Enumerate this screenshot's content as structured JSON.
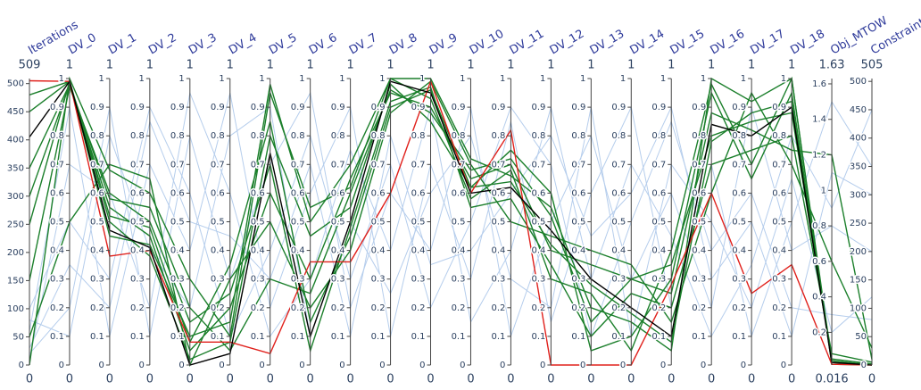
{
  "chart_data": {
    "type": "parcoords",
    "dimensions": [
      {
        "label": "Iterations",
        "range": [
          0,
          509
        ],
        "ticks": [
          0,
          50,
          100,
          150,
          200,
          250,
          300,
          350,
          400,
          450,
          500
        ]
      },
      {
        "label": "DV_0",
        "range": [
          0,
          1
        ],
        "ticks": [
          0,
          0.1,
          0.2,
          0.3,
          0.4,
          0.5,
          0.6,
          0.7,
          0.8,
          0.9,
          1
        ]
      },
      {
        "label": "DV_1",
        "range": [
          0,
          1
        ],
        "ticks": [
          0,
          0.1,
          0.2,
          0.3,
          0.4,
          0.5,
          0.6,
          0.7,
          0.8,
          0.9,
          1
        ]
      },
      {
        "label": "DV_2",
        "range": [
          0,
          1
        ],
        "ticks": [
          0,
          0.1,
          0.2,
          0.3,
          0.4,
          0.5,
          0.6,
          0.7,
          0.8,
          0.9,
          1
        ]
      },
      {
        "label": "DV_3",
        "range": [
          0,
          1
        ],
        "ticks": [
          0,
          0.1,
          0.2,
          0.3,
          0.4,
          0.5,
          0.6,
          0.7,
          0.8,
          0.9,
          1
        ]
      },
      {
        "label": "DV_4",
        "range": [
          0,
          1
        ],
        "ticks": [
          0,
          0.1,
          0.2,
          0.3,
          0.4,
          0.5,
          0.6,
          0.7,
          0.8,
          0.9,
          1
        ]
      },
      {
        "label": "DV_5",
        "range": [
          0,
          1
        ],
        "ticks": [
          0,
          0.1,
          0.2,
          0.3,
          0.4,
          0.5,
          0.6,
          0.7,
          0.8,
          0.9,
          1
        ]
      },
      {
        "label": "DV_6",
        "range": [
          0,
          1
        ],
        "ticks": [
          0,
          0.1,
          0.2,
          0.3,
          0.4,
          0.5,
          0.6,
          0.7,
          0.8,
          0.9,
          1
        ]
      },
      {
        "label": "DV_7",
        "range": [
          0,
          1
        ],
        "ticks": [
          0,
          0.1,
          0.2,
          0.3,
          0.4,
          0.5,
          0.6,
          0.7,
          0.8,
          0.9,
          1
        ]
      },
      {
        "label": "DV_8",
        "range": [
          0,
          1
        ],
        "ticks": [
          0,
          0.1,
          0.2,
          0.3,
          0.4,
          0.5,
          0.6,
          0.7,
          0.8,
          0.9,
          1
        ]
      },
      {
        "label": "DV_9",
        "range": [
          0,
          1
        ],
        "ticks": [
          0,
          0.1,
          0.2,
          0.3,
          0.4,
          0.5,
          0.6,
          0.7,
          0.8,
          0.9,
          1
        ]
      },
      {
        "label": "DV_10",
        "range": [
          0,
          1
        ],
        "ticks": [
          0,
          0.1,
          0.2,
          0.3,
          0.4,
          0.5,
          0.6,
          0.7,
          0.8,
          0.9,
          1
        ]
      },
      {
        "label": "DV_11",
        "range": [
          0,
          1
        ],
        "ticks": [
          0,
          0.1,
          0.2,
          0.3,
          0.4,
          0.5,
          0.6,
          0.7,
          0.8,
          0.9,
          1
        ]
      },
      {
        "label": "DV_12",
        "range": [
          0,
          1
        ],
        "ticks": [
          0,
          0.1,
          0.2,
          0.3,
          0.4,
          0.5,
          0.6,
          0.7,
          0.8,
          0.9,
          1
        ]
      },
      {
        "label": "DV_13",
        "range": [
          0,
          1
        ],
        "ticks": [
          0,
          0.1,
          0.2,
          0.3,
          0.4,
          0.5,
          0.6,
          0.7,
          0.8,
          0.9,
          1
        ]
      },
      {
        "label": "DV_14",
        "range": [
          0,
          1
        ],
        "ticks": [
          0,
          0.1,
          0.2,
          0.3,
          0.4,
          0.5,
          0.6,
          0.7,
          0.8,
          0.9,
          1
        ]
      },
      {
        "label": "DV_15",
        "range": [
          0,
          1
        ],
        "ticks": [
          0,
          0.1,
          0.2,
          0.3,
          0.4,
          0.5,
          0.6,
          0.7,
          0.8,
          0.9,
          1
        ]
      },
      {
        "label": "DV_16",
        "range": [
          0,
          1
        ],
        "ticks": [
          0,
          0.1,
          0.2,
          0.3,
          0.4,
          0.5,
          0.6,
          0.7,
          0.8,
          0.9,
          1
        ]
      },
      {
        "label": "DV_17",
        "range": [
          0,
          1
        ],
        "ticks": [
          0,
          0.1,
          0.2,
          0.3,
          0.4,
          0.5,
          0.6,
          0.7,
          0.8,
          0.9,
          1
        ]
      },
      {
        "label": "DV_18",
        "range": [
          0,
          1
        ],
        "ticks": [
          0,
          0.1,
          0.2,
          0.3,
          0.4,
          0.5,
          0.6,
          0.7,
          0.8,
          0.9,
          1
        ]
      },
      {
        "label": "Obj_MTOW",
        "range": [
          0.016,
          1.63
        ],
        "ticks": [
          0.2,
          0.4,
          0.6,
          0.8,
          1,
          1.2,
          1.4,
          1.6
        ]
      },
      {
        "label": "Constraints",
        "range": [
          0,
          505
        ],
        "ticks": [
          0,
          50,
          100,
          150,
          200,
          250,
          300,
          350,
          400,
          450,
          500
        ]
      }
    ],
    "series": [
      {
        "color": "#b5cdec",
        "values": [
          20,
          0.2,
          0.9,
          0.1,
          0.8,
          0.3,
          0.7,
          0.95,
          0.2,
          0.6,
          0.4,
          0.9,
          0.1,
          0.5,
          0.8,
          0.3,
          0.6,
          0.2,
          0.9,
          0.4,
          0.8,
          200
        ]
      },
      {
        "color": "#b5cdec",
        "values": [
          60,
          0.9,
          0.1,
          0.7,
          0.4,
          0.95,
          0.2,
          0.6,
          0.9,
          0.1,
          0.7,
          0.3,
          0.85,
          0.15,
          0.6,
          0.9,
          0.2,
          0.7,
          0.1,
          0.5,
          1.5,
          350
        ]
      },
      {
        "color": "#b5cdec",
        "values": [
          100,
          0.5,
          0.3,
          0.9,
          0.6,
          0.1,
          0.4,
          0.8,
          0.3,
          0.7,
          0.2,
          0.5,
          0.9,
          0.7,
          0.1,
          0.5,
          0.85,
          0.4,
          0.6,
          0.2,
          0.3,
          80
        ]
      },
      {
        "color": "#b5cdec",
        "values": [
          10,
          0.7,
          0.6,
          0.2,
          0.95,
          0.6,
          0.1,
          0.3,
          0.75,
          0.4,
          0.9,
          0.15,
          0.4,
          0.9,
          0.3,
          0.7,
          0.45,
          0.1,
          0.35,
          0.8,
          0.9,
          450
        ]
      },
      {
        "color": "#b5cdec",
        "values": [
          80,
          0.1,
          0.8,
          0.4,
          0.2,
          0.8,
          0.9,
          0.1,
          0.5,
          0.25,
          0.6,
          0.8,
          0.3,
          0.2,
          0.9,
          0.1,
          0.7,
          0.5,
          0.2,
          0.65,
          0.2,
          120
        ]
      },
      {
        "color": "#b5cdec",
        "values": [
          30,
          0.35,
          0.2,
          0.85,
          0.5,
          0.45,
          0.3,
          0.7,
          0.1,
          0.8,
          0.35,
          0.4,
          0.6,
          0.8,
          0.45,
          0.6,
          0.9,
          0.3,
          0.5,
          0.1,
          1.1,
          300
        ]
      },
      {
        "color": "#1b7f2b",
        "values": [
          0,
          1,
          0.68,
          0.6,
          0.3,
          0.1,
          0.95,
          0.55,
          0.62,
          1,
          1,
          0.72,
          0.66,
          0.55,
          0.2,
          0.15,
          0.05,
          1,
          0.92,
          1,
          0.04,
          0
        ]
      },
      {
        "color": "#1b7f2b",
        "values": [
          300,
          0.98,
          0.55,
          0.45,
          0.05,
          0.2,
          0.6,
          0.3,
          0.65,
          0.95,
          0.9,
          0.65,
          0.7,
          0.4,
          0.35,
          0.3,
          0.35,
          0.8,
          0.85,
          0.88,
          0.05,
          2
        ]
      },
      {
        "color": "#1b7f2b",
        "values": [
          150,
          0.97,
          0.6,
          0.5,
          0.15,
          0.25,
          0.7,
          0.05,
          0.48,
          0.92,
          0.97,
          0.55,
          0.58,
          0.35,
          0.1,
          0.25,
          0.2,
          0.7,
          0.75,
          0.8,
          0.08,
          5
        ]
      },
      {
        "color": "#1b7f2b",
        "values": [
          480,
          0.99,
          0.5,
          0.38,
          0.02,
          0.08,
          0.8,
          0.45,
          0.55,
          0.98,
          0.85,
          0.62,
          0.75,
          0.6,
          0.05,
          0.1,
          0.3,
          0.95,
          0.65,
          0.95,
          0.03,
          1
        ]
      },
      {
        "color": "#1b7f2b",
        "values": [
          50,
          0.5,
          0.7,
          0.65,
          0,
          0.3,
          0.5,
          0.2,
          0.4,
          0.88,
          0.99,
          0.7,
          0.5,
          0.45,
          0.4,
          0.35,
          0.15,
          0.6,
          0.95,
          0.7,
          0.6,
          30
        ]
      },
      {
        "color": "#1b7f2b",
        "values": [
          250,
          0.99,
          0.45,
          0.42,
          0.1,
          0.15,
          0.98,
          0.5,
          0.7,
          1,
          0.93,
          0.58,
          0.68,
          0.3,
          0.25,
          0.05,
          0.4,
          0.98,
          0.7,
          1,
          0.02,
          0
        ]
      },
      {
        "color": "#1b7f2b",
        "values": [
          350,
          0.98,
          0.58,
          0.55,
          0.2,
          0.05,
          0.3,
          0.25,
          0.6,
          0.96,
          0.88,
          0.68,
          0.72,
          0.52,
          0.15,
          0.3,
          0.25,
          0.88,
          0.82,
          0.75,
          1.2,
          10
        ]
      },
      {
        "color": "#1b7f2b",
        "values": [
          450,
          0.99,
          0.52,
          0.48,
          0.08,
          0.35,
          0.85,
          0.15,
          0.45,
          0.9,
          0.96,
          0.62,
          0.64,
          0.42,
          0.28,
          0.18,
          0.08,
          0.78,
          0.88,
          0.92,
          0.04,
          0
        ]
      },
      {
        "color": "#e0201b",
        "values": [
          505,
          0.99,
          0.38,
          0.4,
          0.08,
          0.08,
          0.04,
          0.36,
          0.36,
          0.6,
          0.99,
          0.6,
          0.82,
          0,
          0,
          0,
          0.28,
          0.6,
          0.25,
          0.35,
          0.02,
          0
        ]
      },
      {
        "color": "#000000",
        "values": [
          405,
          0.99,
          0.47,
          0.41,
          0,
          0.04,
          0.74,
          0.1,
          0.5,
          0.99,
          0.95,
          0.6,
          0.62,
          0.47,
          0.3,
          0.2,
          0.1,
          0.84,
          0.8,
          0.9,
          0.03,
          0
        ]
      }
    ]
  }
}
